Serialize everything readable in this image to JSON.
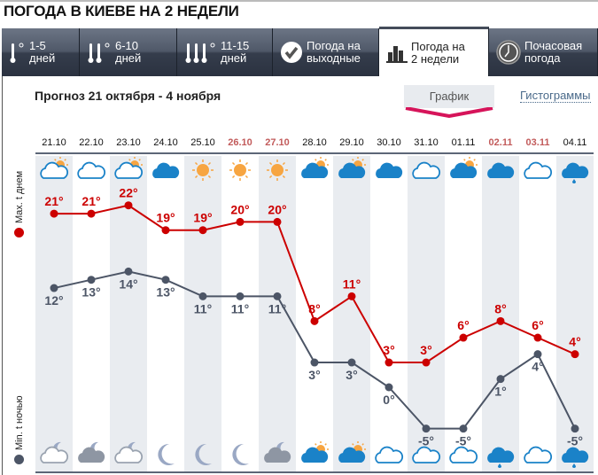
{
  "title": "ПОГОДА В КИЕВЕ НА 2 НЕДЕЛИ",
  "tabs": [
    {
      "line1": "1-5",
      "line2": "дней",
      "icon": "thermometer-1-icon",
      "active": false
    },
    {
      "line1": "6-10",
      "line2": "дней",
      "icon": "thermometer-2-icon",
      "active": false
    },
    {
      "line1": "11-15",
      "line2": "дней",
      "icon": "thermometer-3-icon",
      "active": false
    },
    {
      "line1": "Погода на",
      "line2": "выходные",
      "icon": "checkmark-icon",
      "active": false
    },
    {
      "line1": "Погода на",
      "line2": "2 недели",
      "icon": "bar-chart-icon",
      "active": true
    },
    {
      "line1": "Почасовая",
      "line2": "погода",
      "icon": "clock-icon",
      "active": false
    }
  ],
  "subtitle": "Прогноз 21 октября - 4 ноября",
  "view": {
    "graph": "График",
    "histogram": "Гистограммы"
  },
  "axis": {
    "max_label": "Max. t днем",
    "min_label": "Min. t ночью"
  },
  "colors": {
    "max": "#cc0000",
    "min": "#4c5566",
    "weekend": "#c25b5b",
    "accent": "#d6145a"
  },
  "days": [
    {
      "date": "21.10",
      "weekend": false,
      "max": 21,
      "min": 12,
      "day_icon": "cloud-outline-sun",
      "night_icon": "cloud-outline-moon"
    },
    {
      "date": "22.10",
      "weekend": false,
      "max": 21,
      "min": 13,
      "day_icon": "cloud-outline",
      "night_icon": "cloud-gray-moon"
    },
    {
      "date": "23.10",
      "weekend": false,
      "max": 22,
      "min": 14,
      "day_icon": "cloud-outline-sun",
      "night_icon": "cloud-outline-moon"
    },
    {
      "date": "24.10",
      "weekend": false,
      "max": 19,
      "min": 13,
      "day_icon": "cloud",
      "night_icon": "moon"
    },
    {
      "date": "25.10",
      "weekend": false,
      "max": 19,
      "min": 11,
      "day_icon": "sun",
      "night_icon": "moon"
    },
    {
      "date": "26.10",
      "weekend": true,
      "max": 20,
      "min": 11,
      "day_icon": "sun",
      "night_icon": "moon"
    },
    {
      "date": "27.10",
      "weekend": true,
      "max": 20,
      "min": 11,
      "day_icon": "sun",
      "night_icon": "cloud-gray-moon"
    },
    {
      "date": "28.10",
      "weekend": false,
      "max": 8,
      "min": 3,
      "day_icon": "cloud-sun",
      "night_icon": "cloud-sun"
    },
    {
      "date": "29.10",
      "weekend": false,
      "max": 11,
      "min": 3,
      "day_icon": "cloud-sun",
      "night_icon": "cloud-sun"
    },
    {
      "date": "30.10",
      "weekend": false,
      "max": 3,
      "min": 0,
      "day_icon": "cloud",
      "night_icon": "cloud-outline"
    },
    {
      "date": "31.10",
      "weekend": false,
      "max": 3,
      "min": -5,
      "day_icon": "cloud-outline",
      "night_icon": "cloud-outline"
    },
    {
      "date": "01.11",
      "weekend": false,
      "max": 6,
      "min": -5,
      "day_icon": "cloud-sun",
      "night_icon": "cloud-outline"
    },
    {
      "date": "02.11",
      "weekend": true,
      "max": 8,
      "min": 1,
      "day_icon": "cloud",
      "night_icon": "cloud-rain"
    },
    {
      "date": "03.11",
      "weekend": true,
      "max": 6,
      "min": 4,
      "day_icon": "cloud-outline",
      "night_icon": "cloud-outline"
    },
    {
      "date": "04.11",
      "weekend": false,
      "max": 4,
      "min": -5,
      "day_icon": "cloud-rain",
      "night_icon": "cloud-rain"
    }
  ]
}
